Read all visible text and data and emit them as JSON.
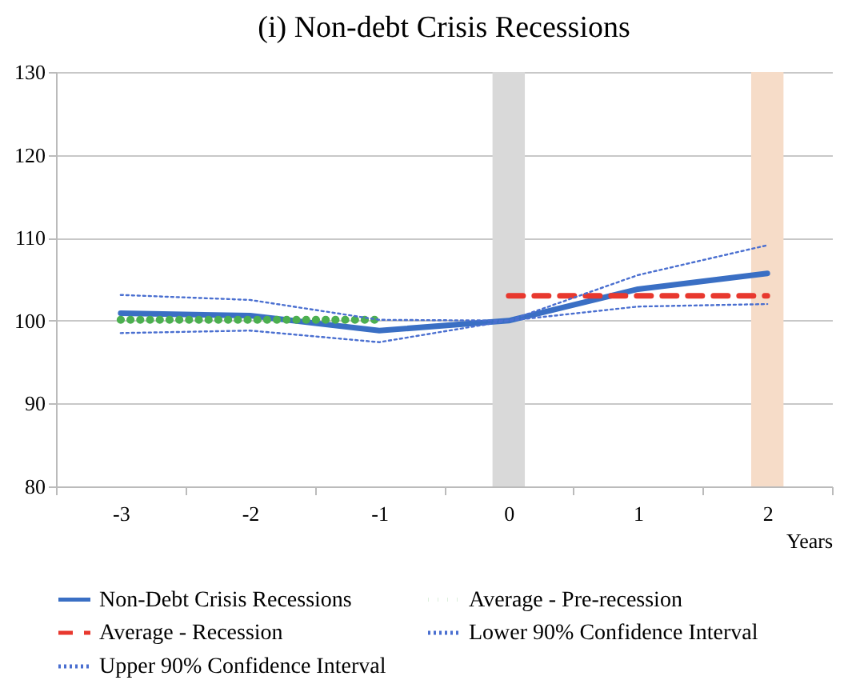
{
  "chart_data": {
    "type": "line",
    "title": "(i) Non-debt Crisis Recessions",
    "xlabel": "Years",
    "categories": [
      "-3",
      "-2",
      "-1",
      "0",
      "1",
      "2"
    ],
    "series": [
      {
        "name": "Non-Debt Crisis Recessions",
        "color": "#3a6fc4",
        "line_style": "solid",
        "values": [
          100.9,
          100.6,
          98.8,
          100,
          103.8,
          105.7
        ]
      },
      {
        "name": "Average - Pre-recession",
        "color": "#4caf50",
        "line_style": "dotted",
        "values": [
          100.1,
          100.1,
          100.1,
          null,
          null,
          null
        ]
      },
      {
        "name": "Average - Recession",
        "color": "#e8382e",
        "line_style": "dashed",
        "values": [
          null,
          null,
          null,
          103.0,
          103.0,
          103.0
        ]
      },
      {
        "name": "Lower 90% Confidence Interval",
        "color": "#4a6fd0",
        "line_style": "dotted",
        "values": [
          98.5,
          98.8,
          97.4,
          100,
          101.7,
          102.0
        ]
      },
      {
        "name": "Upper 90% Confidence Interval",
        "color": "#4a6fd0",
        "line_style": "dotted",
        "values": [
          103.1,
          102.5,
          100.1,
          100,
          105.5,
          109.1
        ]
      }
    ],
    "bands": [
      {
        "axis": "x",
        "from": "0",
        "to": "0",
        "color": "#d9d9d9"
      },
      {
        "axis": "x",
        "from": "2",
        "to": "2",
        "color": "#f6dcc8"
      }
    ],
    "ylim": [
      80,
      130
    ],
    "yticks": [
      80,
      90,
      100,
      110,
      120,
      130
    ],
    "grid": "y",
    "legend": "bottom",
    "marker": "none"
  }
}
